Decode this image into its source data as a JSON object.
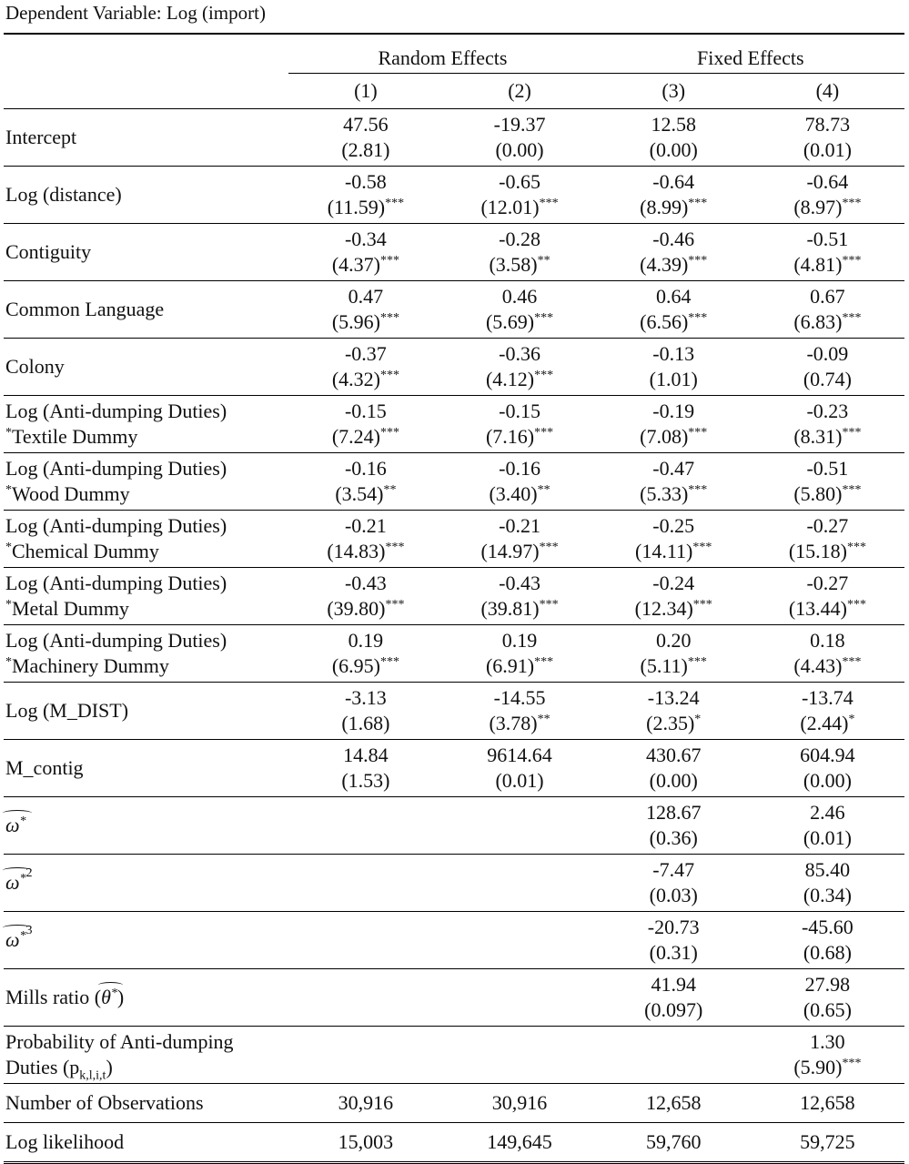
{
  "caption": "Dependent Variable: Log (import)",
  "groups": [
    "Random Effects",
    "Fixed Effects"
  ],
  "columns": [
    "(1)",
    "(2)",
    "(3)",
    "(4)"
  ],
  "rows": [
    {
      "label": "Intercept",
      "cells": [
        {
          "coef": "47.56",
          "se": "(2.81)"
        },
        {
          "coef": "-19.37",
          "se": "(0.00)"
        },
        {
          "coef": "12.58",
          "se": "(0.00)"
        },
        {
          "coef": "78.73",
          "se": "(0.01)"
        }
      ]
    },
    {
      "label": "Log (distance)",
      "cells": [
        {
          "coef": "-0.58",
          "se": "(11.59)",
          "stars": "***"
        },
        {
          "coef": "-0.65",
          "se": "(12.01)",
          "stars": "***"
        },
        {
          "coef": "-0.64",
          "se": "(8.99)",
          "stars": "***"
        },
        {
          "coef": "-0.64",
          "se": "(8.97)",
          "stars": "***"
        }
      ]
    },
    {
      "label": "Contiguity",
      "cells": [
        {
          "coef": "-0.34",
          "se": "(4.37)",
          "stars": "***"
        },
        {
          "coef": "-0.28",
          "se": "(3.58)",
          "stars": "**"
        },
        {
          "coef": "-0.46",
          "se": "(4.39)",
          "stars": "***"
        },
        {
          "coef": "-0.51",
          "se": "(4.81)",
          "stars": "***"
        }
      ]
    },
    {
      "label": "Common Language",
      "cells": [
        {
          "coef": "0.47",
          "se": "(5.96)",
          "stars": "***"
        },
        {
          "coef": "0.46",
          "se": "(5.69)",
          "stars": "***"
        },
        {
          "coef": "0.64",
          "se": "(6.56)",
          "stars": "***"
        },
        {
          "coef": "0.67",
          "se": "(6.83)",
          "stars": "***"
        }
      ]
    },
    {
      "label": "Colony",
      "cells": [
        {
          "coef": "-0.37",
          "se": "(4.32)",
          "stars": "***"
        },
        {
          "coef": "-0.36",
          "se": "(4.12)",
          "stars": "***"
        },
        {
          "coef": "-0.13",
          "se": "(1.01)"
        },
        {
          "coef": "-0.09",
          "se": "(0.74)"
        }
      ]
    },
    {
      "label": "Log (Anti-dumping Duties)",
      "label2_sup": "*",
      "label2": "Textile Dummy",
      "cells": [
        {
          "coef": "-0.15",
          "se": "(7.24)",
          "stars": "***"
        },
        {
          "coef": "-0.15",
          "se": "(7.16)",
          "stars": "***"
        },
        {
          "coef": "-0.19",
          "se": "(7.08)",
          "stars": "***"
        },
        {
          "coef": "-0.23",
          "se": "(8.31)",
          "stars": "***"
        }
      ]
    },
    {
      "label": "Log (Anti-dumping Duties)",
      "label2_sup": "*",
      "label2": "Wood Dummy",
      "cells": [
        {
          "coef": "-0.16",
          "se": "(3.54)",
          "stars": "**"
        },
        {
          "coef": "-0.16",
          "se": "(3.40)",
          "stars": "**"
        },
        {
          "coef": "-0.47",
          "se": "(5.33)",
          "stars": "***"
        },
        {
          "coef": "-0.51",
          "se": "(5.80)",
          "stars": "***"
        }
      ]
    },
    {
      "label": "Log (Anti-dumping Duties)",
      "label2_sup": "*",
      "label2": "Chemical Dummy",
      "cells": [
        {
          "coef": "-0.21",
          "se": "(14.83)",
          "stars": "***"
        },
        {
          "coef": "-0.21",
          "se": "(14.97)",
          "stars": "***"
        },
        {
          "coef": "-0.25",
          "se": "(14.11)",
          "stars": "***"
        },
        {
          "coef": "-0.27",
          "se": "(15.18)",
          "stars": "***"
        }
      ]
    },
    {
      "label": "Log (Anti-dumping Duties)",
      "label2_sup": "*",
      "label2": "Metal Dummy",
      "cells": [
        {
          "coef": "-0.43",
          "se": "(39.80)",
          "stars": "***"
        },
        {
          "coef": "-0.43",
          "se": "(39.81)",
          "stars": "***"
        },
        {
          "coef": "-0.24",
          "se": "(12.34)",
          "stars": "***"
        },
        {
          "coef": "-0.27",
          "se": "(13.44)",
          "stars": "***"
        }
      ]
    },
    {
      "label": "Log (Anti-dumping Duties)",
      "label2_sup": "*",
      "label2": "Machinery Dummy",
      "cells": [
        {
          "coef": "0.19",
          "se": "(6.95)",
          "stars": "***"
        },
        {
          "coef": "0.19",
          "se": "(6.91)",
          "stars": "***"
        },
        {
          "coef": "0.20",
          "se": "(5.11)",
          "stars": "***"
        },
        {
          "coef": "0.18",
          "se": "(4.43)",
          "stars": "***"
        }
      ]
    },
    {
      "label": "Log (M_DIST)",
      "cells": [
        {
          "coef": "-3.13",
          "se": "(1.68)"
        },
        {
          "coef": "-14.55",
          "se": "(3.78)",
          "stars": "**"
        },
        {
          "coef": "-13.24",
          "se": "(2.35)",
          "stars": "*"
        },
        {
          "coef": "-13.74",
          "se": "(2.44)",
          "stars": "*"
        }
      ]
    },
    {
      "label": "M_contig",
      "cells": [
        {
          "coef": "14.84",
          "se": "(1.53)"
        },
        {
          "coef": "9614.64",
          "se": "(0.01)"
        },
        {
          "coef": "430.67",
          "se": "(0.00)"
        },
        {
          "coef": "604.94",
          "se": "(0.00)"
        }
      ]
    },
    {
      "symbol": "ω",
      "symbol_sup": "*",
      "cells": [
        null,
        null,
        {
          "coef": "128.67",
          "se": "(0.36)"
        },
        {
          "coef": "2.46",
          "se": "(0.01)"
        }
      ]
    },
    {
      "symbol": "ω",
      "symbol_sup": "*",
      "power": "2",
      "cells": [
        null,
        null,
        {
          "coef": "-7.47",
          "se": "(0.03)"
        },
        {
          "coef": "85.40",
          "se": "(0.34)"
        }
      ]
    },
    {
      "symbol": "ω",
      "symbol_sup": "*",
      "power": "3",
      "cells": [
        null,
        null,
        {
          "coef": "-20.73",
          "se": "(0.31)"
        },
        {
          "coef": "-45.60",
          "se": "(0.68)"
        }
      ]
    },
    {
      "label": "Mills ratio (",
      "symbol": "θ",
      "symbol_sup": "*",
      "label_end": ")",
      "cells": [
        null,
        null,
        {
          "coef": "41.94",
          "se": "(0.097)"
        },
        {
          "coef": "27.98",
          "se": "(0.65)"
        }
      ]
    },
    {
      "label": "Probability of Anti-dumping",
      "label2": "Duties (p",
      "label2_sub": "k,l,i,t",
      "label2_end": ")",
      "cells": [
        null,
        null,
        null,
        {
          "coef": "1.30",
          "se": "(5.90)",
          "stars": "***"
        }
      ]
    }
  ],
  "summary": [
    {
      "label": "Number of Observations",
      "values": [
        "30,916",
        "30,916",
        "12,658",
        "12,658"
      ]
    },
    {
      "label": "Log likelihood",
      "values": [
        "15,003",
        "149,645",
        "59,760",
        "59,725"
      ]
    }
  ]
}
